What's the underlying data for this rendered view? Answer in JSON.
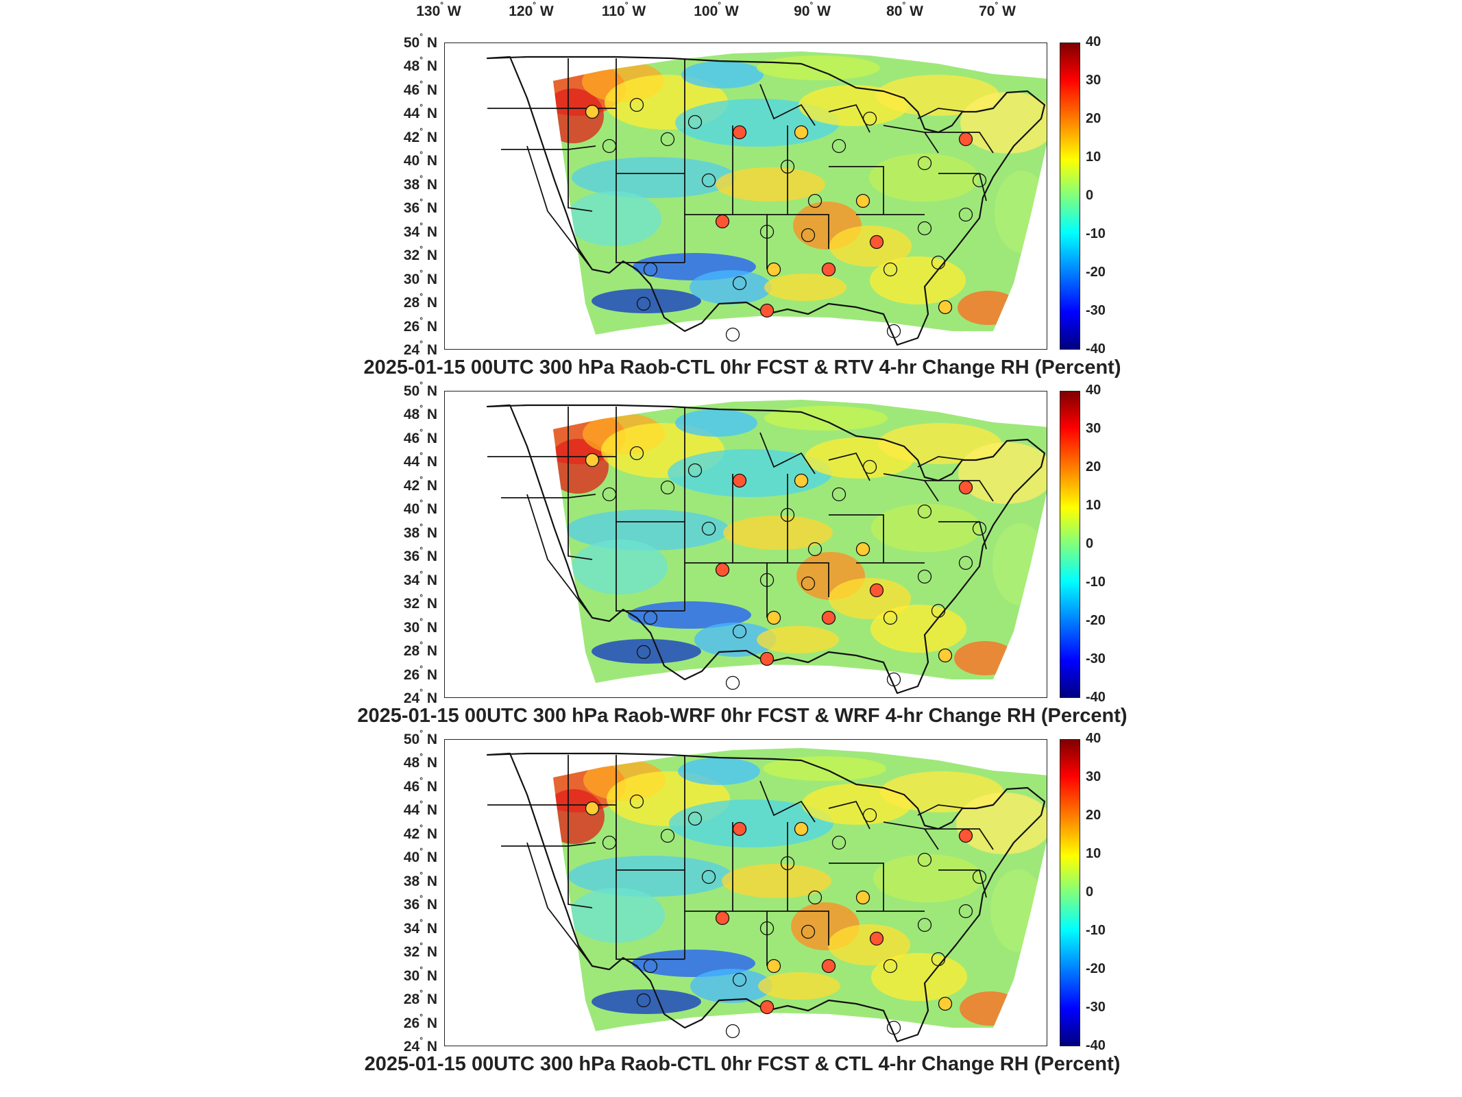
{
  "longitude_labels": [
    "130° W",
    "120° W",
    "110° W",
    "100° W",
    "90° W",
    "80° W",
    "70° W"
  ],
  "latitude_labels": [
    "50° N",
    "48° N",
    "46° N",
    "44° N",
    "42° N",
    "40° N",
    "38° N",
    "36° N",
    "34° N",
    "32° N",
    "30° N",
    "28° N",
    "26° N",
    "24° N"
  ],
  "colorbar": {
    "ticks": [
      "40",
      "30",
      "20",
      "10",
      "0",
      "-10",
      "-20",
      "-30",
      "-40"
    ],
    "colors": [
      "#7f0000",
      "#ff0000",
      "#ff7f00",
      "#ffff00",
      "#7fff7f",
      "#00ffff",
      "#007fff",
      "#0000ff",
      "#00007f"
    ]
  },
  "panels": [
    {
      "title": "2025-01-15 00UTC 300 hPa Raob-CTL 0hr FCST & RTV 4-hr Change RH (Percent)"
    },
    {
      "title": "2025-01-15 00UTC 300 hPa Raob-WRF 0hr FCST & WRF 4-hr Change RH (Percent)"
    },
    {
      "title": "2025-01-15 00UTC 300 hPa Raob-CTL 0hr FCST & CTL 4-hr Change RH (Percent)"
    }
  ]
}
